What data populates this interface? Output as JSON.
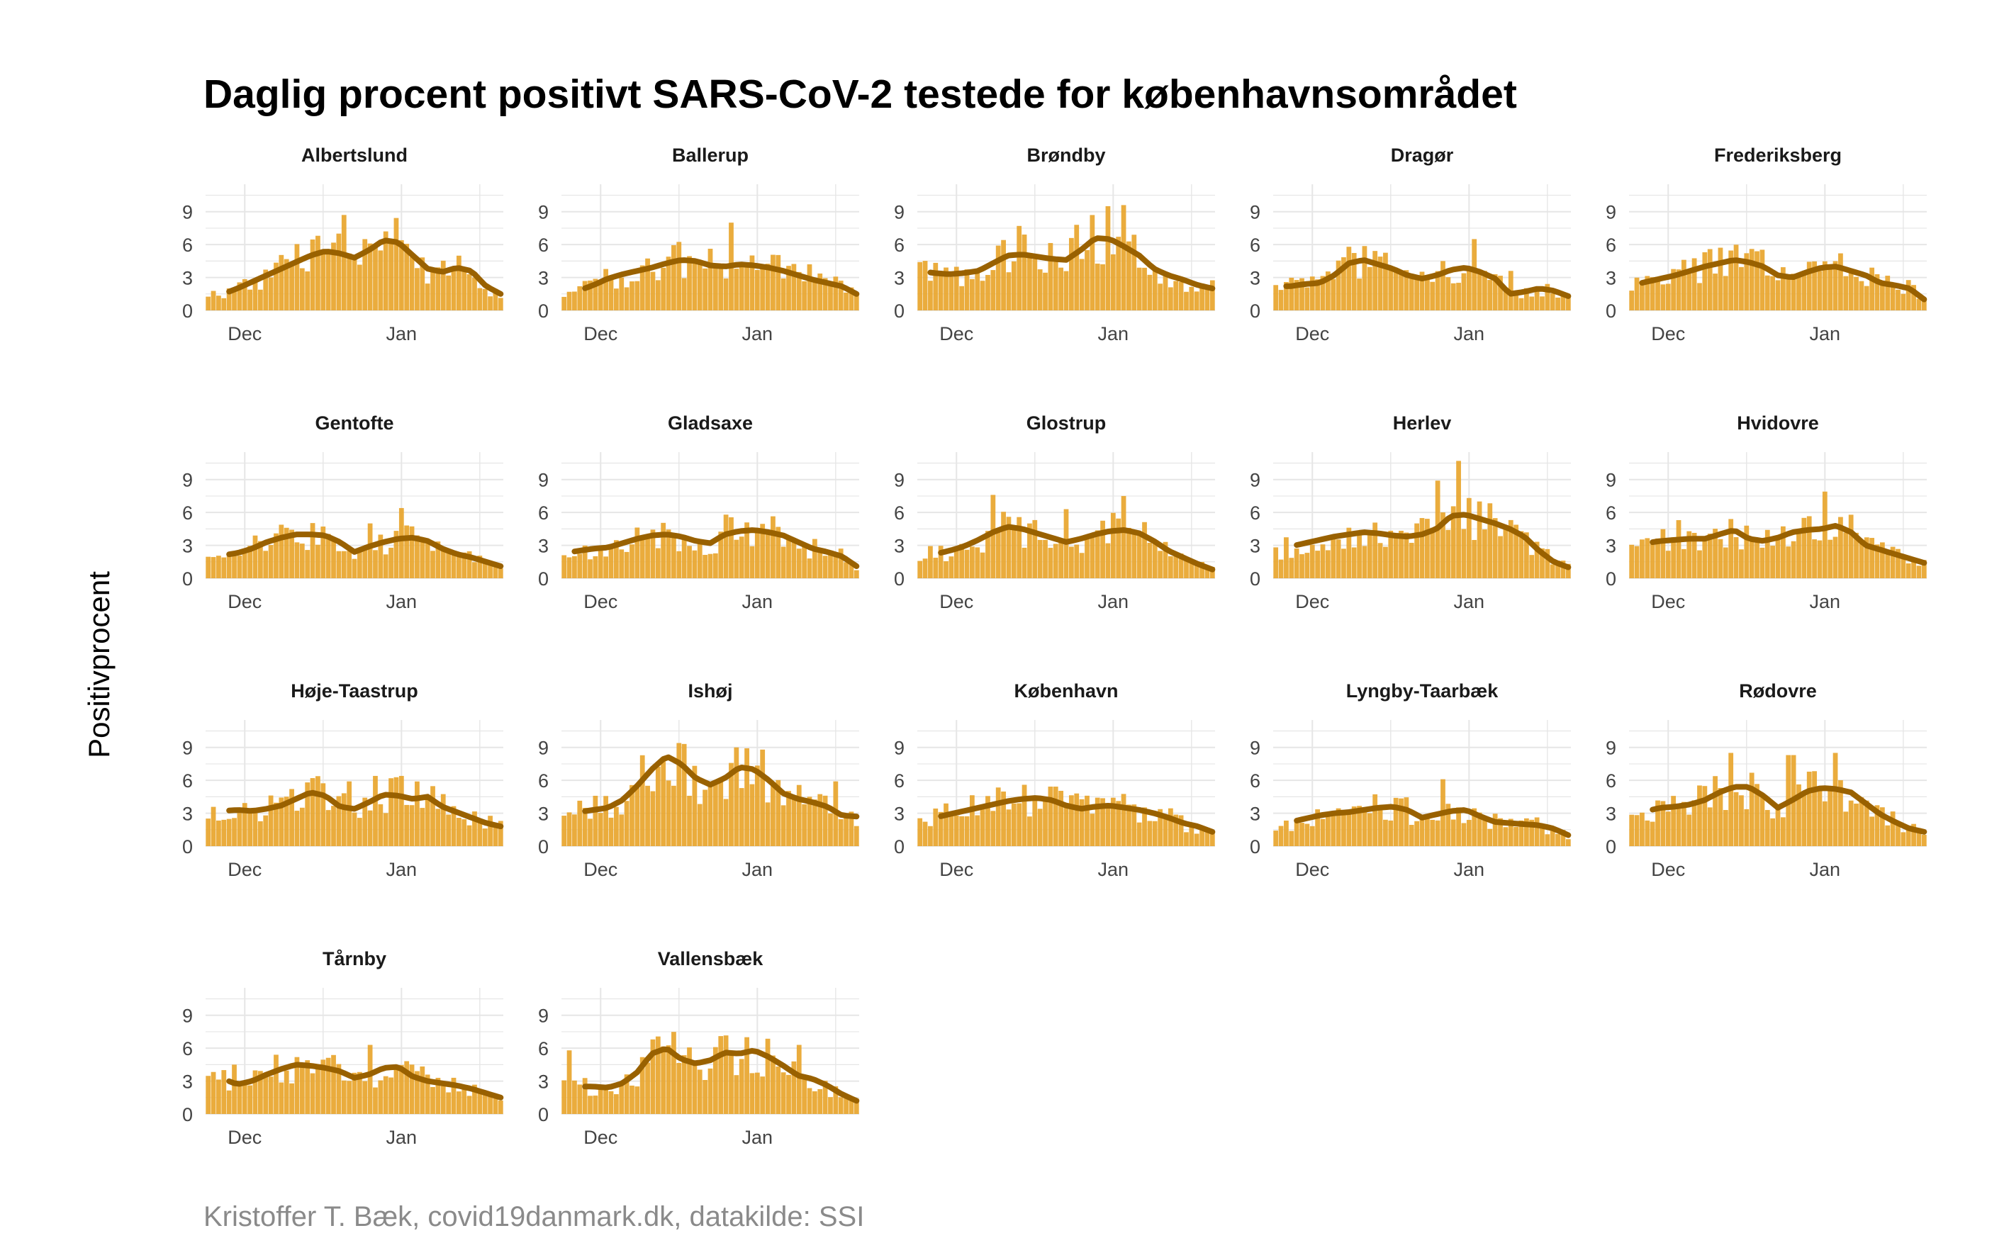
{
  "title": "Daglig procent positivt SARS-CoV-2 testede for københavnsområdet",
  "ylabel": "Positivprocent",
  "caption": "Kristoffer T. Bæk, covid19danmark.dk, datakilde: SSI",
  "colors": {
    "bar": "#E8A52C",
    "line": "#996100",
    "grid": "#e6e6e6",
    "text": "#444444"
  },
  "chart_data": {
    "type": "bar",
    "ylim": [
      0,
      11.5
    ],
    "y_ticks": [
      0,
      3,
      6,
      9
    ],
    "x_ticks": [
      "Dec",
      "Jan"
    ],
    "x_tick_day": [
      7,
      37
    ],
    "n_days": 57,
    "panels": [
      {
        "name": "Albertslund",
        "anchors": [
          1.2,
          1.5,
          2.0,
          2.6,
          3.2,
          3.8,
          4.4,
          5.0,
          5.4,
          5.2,
          4.8,
          5.5,
          6.4,
          6.2,
          5.0,
          3.8,
          3.5,
          3.9,
          3.6,
          2.2,
          1.5
        ],
        "smooth_start": 0.4,
        "spikes": [
          [
            26,
            8.7
          ],
          [
            25,
            7.0
          ],
          [
            34,
            7.2
          ],
          [
            23,
            5.4
          ],
          [
            47,
            3.8
          ]
        ]
      },
      {
        "name": "Ballerup",
        "anchors": [
          1.5,
          1.8,
          2.3,
          2.9,
          3.3,
          3.6,
          3.9,
          4.3,
          4.6,
          4.5,
          4.1,
          4.0,
          4.2,
          4.1,
          3.9,
          3.6,
          3.2,
          2.8,
          2.5,
          2.2,
          1.5
        ],
        "smooth_start": 0.4,
        "spikes": [
          [
            32,
            8.0
          ],
          [
            47,
            4.2
          ],
          [
            26,
            4.4
          ]
        ]
      },
      {
        "name": "Brøndby",
        "anchors": [
          3.6,
          3.4,
          3.3,
          3.4,
          3.6,
          4.3,
          5.0,
          5.1,
          4.9,
          4.7,
          4.6,
          5.5,
          6.6,
          6.5,
          5.8,
          5.0,
          3.8,
          3.2,
          2.8,
          2.3,
          2.0
        ],
        "smooth_start": 0.15,
        "spikes": [
          [
            30,
            7.8
          ],
          [
            36,
            9.5
          ],
          [
            39,
            9.6
          ],
          [
            19,
            7.7
          ],
          [
            29,
            6.6
          ]
        ]
      },
      {
        "name": "Dragør",
        "anchors": [
          2.2,
          2.2,
          2.4,
          2.5,
          3.2,
          4.3,
          4.6,
          4.2,
          3.8,
          3.2,
          2.9,
          3.2,
          3.7,
          3.9,
          3.5,
          2.9,
          1.5,
          1.7,
          2.0,
          1.8,
          1.3
        ],
        "smooth_start": 0.15,
        "spikes": [
          [
            14,
            5.8
          ],
          [
            38,
            6.5
          ],
          [
            32,
            4.5
          ],
          [
            45,
            3.6
          ]
        ]
      },
      {
        "name": "Frederiksberg",
        "anchors": [
          2.3,
          2.6,
          2.9,
          3.2,
          3.6,
          4.0,
          4.3,
          4.6,
          4.4,
          4.0,
          3.2,
          3.0,
          3.5,
          3.9,
          4.0,
          3.6,
          3.2,
          2.5,
          2.3,
          2.0,
          1.0
        ],
        "smooth_start": 0.15,
        "spikes": []
      },
      {
        "name": "Gentofte",
        "anchors": [
          2.0,
          2.1,
          2.3,
          2.7,
          3.3,
          3.7,
          4.0,
          4.0,
          3.9,
          3.3,
          2.4,
          2.9,
          3.3,
          3.6,
          3.7,
          3.4,
          2.7,
          2.2,
          1.9,
          1.5,
          1.1
        ],
        "smooth_start": 0.4,
        "spikes": [
          [
            37,
            6.4
          ],
          [
            31,
            5.0
          ],
          [
            43,
            2.5
          ]
        ]
      },
      {
        "name": "Gladsaxe",
        "anchors": [
          2.3,
          2.5,
          2.7,
          2.8,
          3.2,
          3.6,
          3.9,
          4.0,
          3.8,
          3.4,
          3.2,
          4.0,
          4.3,
          4.4,
          4.2,
          3.9,
          3.3,
          2.7,
          2.4,
          2.0,
          1.1
        ],
        "smooth_start": 0.15,
        "spikes": [
          [
            31,
            5.8
          ]
        ]
      },
      {
        "name": "Glostrup",
        "anchors": [
          2.0,
          2.2,
          2.5,
          2.9,
          3.5,
          4.2,
          4.7,
          4.5,
          4.1,
          3.7,
          3.3,
          3.6,
          4.0,
          4.3,
          4.4,
          4.1,
          3.4,
          2.5,
          1.9,
          1.3,
          0.8
        ],
        "smooth_start": 0.4,
        "spikes": [
          [
            14,
            7.6
          ],
          [
            39,
            7.5
          ],
          [
            17,
            5.6
          ],
          [
            28,
            6.3
          ]
        ]
      },
      {
        "name": "Herlev",
        "anchors": [
          2.6,
          2.9,
          3.2,
          3.5,
          3.8,
          4.0,
          4.2,
          4.1,
          3.9,
          3.8,
          4.0,
          4.5,
          5.7,
          5.8,
          5.4,
          5.0,
          4.5,
          3.8,
          2.5,
          1.5,
          1.0
        ],
        "smooth_start": 0.4,
        "spikes": [
          [
            35,
            10.7
          ],
          [
            31,
            8.9
          ],
          [
            39,
            7.0
          ],
          [
            27,
            5.0
          ]
        ]
      },
      {
        "name": "Hvidovre",
        "anchors": [
          3.2,
          3.2,
          3.4,
          3.5,
          3.6,
          3.6,
          4.0,
          4.4,
          3.6,
          3.4,
          3.7,
          4.2,
          4.4,
          4.5,
          4.8,
          4.2,
          3.0,
          2.6,
          2.2,
          1.8,
          1.4
        ],
        "smooth_start": 0.4,
        "spikes": [
          [
            37,
            7.9
          ],
          [
            9,
            5.3
          ],
          [
            19,
            5.4
          ]
        ]
      },
      {
        "name": "Høje-Taastrup",
        "anchors": [
          3.0,
          3.2,
          3.3,
          3.2,
          3.4,
          3.7,
          4.3,
          4.9,
          4.6,
          3.6,
          3.4,
          4.0,
          4.7,
          4.6,
          4.3,
          4.5,
          3.6,
          3.1,
          2.6,
          2.1,
          1.8
        ],
        "smooth_start": 0.4,
        "spikes": [
          [
            20,
            6.2
          ],
          [
            32,
            6.4
          ],
          [
            37,
            6.4
          ],
          [
            27,
            5.9
          ]
        ]
      },
      {
        "name": "Ishøj",
        "anchors": [
          2.8,
          3.1,
          3.3,
          3.5,
          4.2,
          5.5,
          7.0,
          8.2,
          7.5,
          6.2,
          5.6,
          6.2,
          7.2,
          7.0,
          6.0,
          4.8,
          4.3,
          4.0,
          3.6,
          2.8,
          2.7
        ],
        "smooth_start": 0.4,
        "spikes": [
          [
            22,
            9.4
          ],
          [
            33,
            9.0
          ],
          [
            52,
            5.9
          ]
        ]
      },
      {
        "name": "København",
        "anchors": [
          2.4,
          2.6,
          2.9,
          3.2,
          3.5,
          3.8,
          4.1,
          4.3,
          4.4,
          4.2,
          3.7,
          3.4,
          3.6,
          3.7,
          3.5,
          3.3,
          3.0,
          2.6,
          2.1,
          1.8,
          1.3
        ],
        "smooth_start": 0.4,
        "spikes": [
          [
            30,
            4.8
          ]
        ]
      },
      {
        "name": "Lyngby-Taarbæk",
        "anchors": [
          2.0,
          2.2,
          2.5,
          2.8,
          3.0,
          3.1,
          3.3,
          3.5,
          3.6,
          3.3,
          2.6,
          2.9,
          3.2,
          3.3,
          2.7,
          2.2,
          2.1,
          2.0,
          1.9,
          1.6,
          1.0
        ],
        "smooth_start": 0.4,
        "spikes": [
          [
            32,
            6.1
          ],
          [
            23,
            4.4
          ]
        ]
      },
      {
        "name": "Rødovre",
        "anchors": [
          2.7,
          3.2,
          3.5,
          3.6,
          3.8,
          4.2,
          4.9,
          5.4,
          5.4,
          4.6,
          3.5,
          4.2,
          5.0,
          5.3,
          5.2,
          4.9,
          3.9,
          2.9,
          2.2,
          1.6,
          1.3
        ],
        "smooth_start": 0.4,
        "spikes": [
          [
            19,
            8.5
          ],
          [
            30,
            8.3
          ],
          [
            31,
            8.3
          ],
          [
            39,
            8.5
          ]
        ]
      },
      {
        "name": "Tårnby",
        "anchors": [
          3.6,
          3.2,
          2.7,
          3.0,
          3.6,
          4.1,
          4.5,
          4.4,
          4.2,
          3.9,
          3.3,
          3.6,
          4.2,
          4.3,
          3.4,
          3.0,
          2.8,
          2.6,
          2.3,
          1.9,
          1.5
        ],
        "smooth_start": 0.4,
        "spikes": [
          [
            31,
            6.3
          ],
          [
            5,
            4.5
          ],
          [
            19,
            4.9
          ],
          [
            47,
            3.3
          ]
        ]
      },
      {
        "name": "Vallensbæk",
        "anchors": [
          3.0,
          2.5,
          2.5,
          2.4,
          2.8,
          3.8,
          5.5,
          6.0,
          5.0,
          4.6,
          4.9,
          5.6,
          5.5,
          5.8,
          5.2,
          4.4,
          3.5,
          3.2,
          2.6,
          1.8,
          1.2
        ],
        "smooth_start": 0.4,
        "spikes": [
          [
            1,
            5.8
          ],
          [
            30,
            7.1
          ],
          [
            35,
            7.0
          ],
          [
            45,
            6.3
          ]
        ]
      }
    ]
  }
}
